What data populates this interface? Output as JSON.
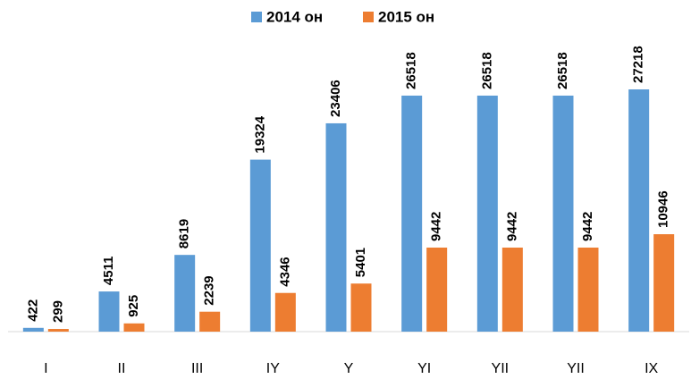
{
  "chart_data": {
    "type": "bar",
    "categories": [
      "I",
      "II",
      "III",
      "IY",
      "Y",
      "YI",
      "YII",
      "YII",
      "IX"
    ],
    "series": [
      {
        "name": "2014 он",
        "color": "#5b9bd5",
        "values": [
          422,
          4511,
          8619,
          19324,
          23406,
          26518,
          26518,
          26518,
          27218
        ]
      },
      {
        "name": "2015 он",
        "color": "#ed7d31",
        "values": [
          299,
          925,
          2239,
          4346,
          5401,
          9442,
          9442,
          9442,
          10946
        ]
      }
    ],
    "legend": "top"
  }
}
